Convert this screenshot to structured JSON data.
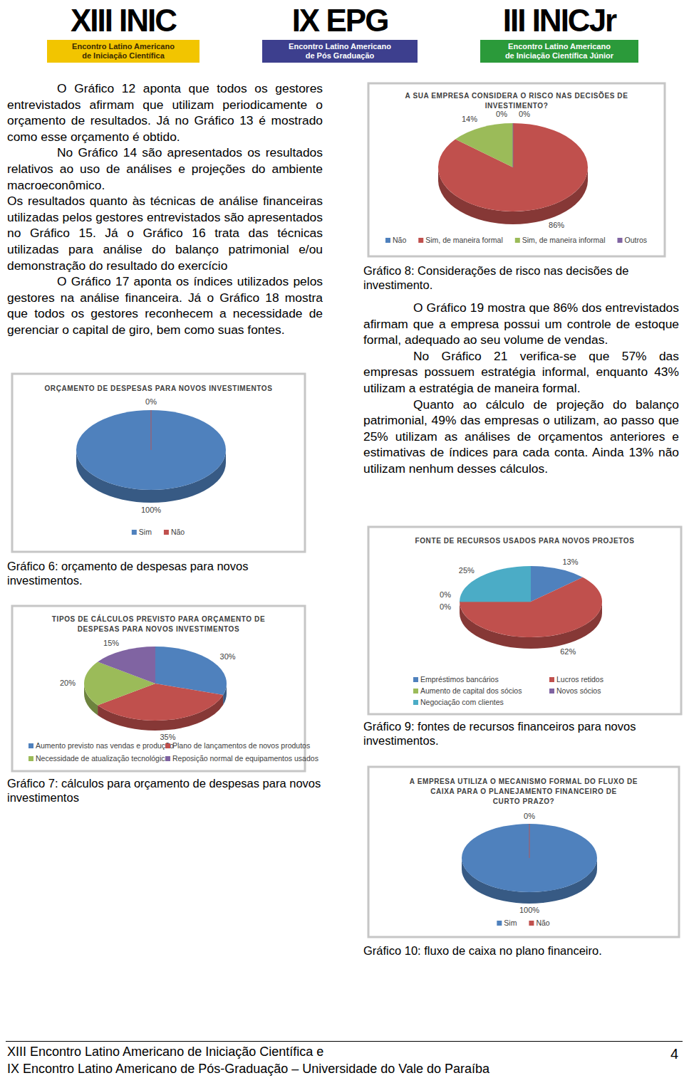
{
  "header": {
    "logos": [
      {
        "name": "XIII INIC",
        "subtitle": [
          "Encontro Latino Americano",
          "de Iniciação Científica"
        ]
      },
      {
        "name": "IX EPG",
        "subtitle": [
          "Encontro Latino Americano",
          "de Pós Graduação"
        ]
      },
      {
        "name": "III INICJr",
        "subtitle": [
          "Encontro Latino Americano",
          "de Iniciação Científica Júnior"
        ]
      }
    ]
  },
  "left_column": {
    "paragraphs": [
      "O Gráfico 12 aponta que todos os gestores entrevistados afirmam que utilizam periodicamente o orçamento de resultados. Já no Gráfico 13 é mostrado como esse orçamento é obtido.",
      "No Gráfico 14 são apresentados os resultados relativos ao uso de análises e projeções do ambiente macroeconômico.",
      "Os resultados quanto às técnicas de análise financeiras utilizadas pelos gestores entrevistados são apresentados no Gráfico 15. Já o Gráfico 16 trata das técnicas utilizadas para análise do balanço patrimonial e/ou demonstração do resultado do exercício",
      "O Gráfico 17 aponta os índices utilizados pelos gestores na análise financeira. Já o Gráfico 18 mostra que todos os gestores reconhecem a necessidade de gerenciar o capital de giro, bem como suas fontes."
    ]
  },
  "right_column": {
    "paragraphs": [
      "O Gráfico 19 mostra que 86% dos entrevistados afirmam que a empresa possui um controle de estoque formal, adequado ao seu volume de vendas.",
      "No Gráfico 21 verifica-se que 57% das empresas possuem estratégia informal, enquanto 43% utilizam a estratégia de maneira formal.",
      "Quanto ao cálculo de projeção do balanço patrimonial, 49% das empresas o utilizam, ao passo que 25% utilizam as análises de orçamentos anteriores e estimativas de índices para cada conta. Ainda 13% não utilizam nenhum desses cálculos."
    ]
  },
  "chart_data": [
    {
      "type": "pie",
      "title": "ORÇAMENTO DE DESPESAS PARA NOVOS INVESTIMENTOS",
      "categories": [
        "Sim",
        "Não"
      ],
      "values": [
        100,
        0
      ],
      "value_labels": [
        "100%",
        "0%"
      ],
      "data_labels": true,
      "colors": [
        "#4f81bd",
        "#c0504d"
      ],
      "legend": "bottom"
    },
    {
      "type": "pie",
      "title": "TIPOS DE CÁLCULOS PREVISTO PARA ORÇAMENTO DE\nDESPESAS PARA NOVOS INVESTIMENTOS",
      "categories": [
        "Aumento previsto nas vendas e produção",
        "Plano de lançamentos de novos produtos",
        "Necessidade de atualização tecnológica",
        "Reposição normal de equipamentos usados"
      ],
      "values": [
        30,
        35,
        20,
        15
      ],
      "value_labels": [
        "30%",
        "35%",
        "20%",
        "15%"
      ],
      "data_labels": true,
      "colors": [
        "#4f81bd",
        "#c0504d",
        "#9bbb59",
        "#8064a2"
      ],
      "legend": "bottom"
    },
    {
      "type": "pie",
      "title": "A SUA EMPRESA CONSIDERA O RISCO NAS DECISÕES DE\nINVESTIMENTO?",
      "categories": [
        "Não",
        "Sim, de maneira formal",
        "Sim, de maneira informal",
        "Outros"
      ],
      "values": [
        0,
        86,
        14,
        0
      ],
      "value_labels": [
        "0%",
        "86%",
        "14%",
        "0%"
      ],
      "data_labels": true,
      "colors": [
        "#4f81bd",
        "#c0504d",
        "#9bbb59",
        "#8064a2"
      ],
      "legend": "bottom"
    },
    {
      "type": "pie",
      "title": "FONTE DE RECURSOS USADOS PARA NOVOS PROJETOS",
      "categories": [
        "Empréstimos bancários",
        "Lucros retidos",
        "Aumento de capital dos sócios",
        "Novos sócios",
        "Negociação com clientes"
      ],
      "values": [
        13,
        62,
        0,
        0,
        25
      ],
      "value_labels": [
        "13%",
        "62%",
        "0%",
        "0%",
        "25%"
      ],
      "data_labels": true,
      "colors": [
        "#4f81bd",
        "#c0504d",
        "#9bbb59",
        "#8064a2",
        "#4bacc6"
      ],
      "legend": "bottom"
    },
    {
      "type": "pie",
      "title": "A EMPRESA UTILIZA O MECANISMO FORMAL DO FLUXO DE\nCAIXA PARA O PLANEJAMENTO FINANCEIRO DE\nCURTO PRAZO?",
      "categories": [
        "Sim",
        "Não"
      ],
      "values": [
        100,
        0
      ],
      "value_labels": [
        "100%",
        "0%"
      ],
      "data_labels": true,
      "colors": [
        "#4f81bd",
        "#c0504d"
      ],
      "legend": "bottom"
    }
  ],
  "captions": [
    "Gráfico 6: orçamento de despesas para novos investimentos.",
    "Gráfico 7: cálculos para orçamento de despesas para novos investimentos",
    "Gráfico 8: Considerações de risco nas decisões de investimento.",
    "Gráfico 9: fontes de recursos financeiros para novos investimentos.",
    "Gráfico 10: fluxo de caixa no plano financeiro."
  ],
  "footer": {
    "lines": [
      "XIII Encontro Latino Americano de Iniciação Científica e",
      "IX Encontro Latino Americano de Pós-Graduação – Universidade do Vale do Paraíba"
    ],
    "page": "4"
  }
}
